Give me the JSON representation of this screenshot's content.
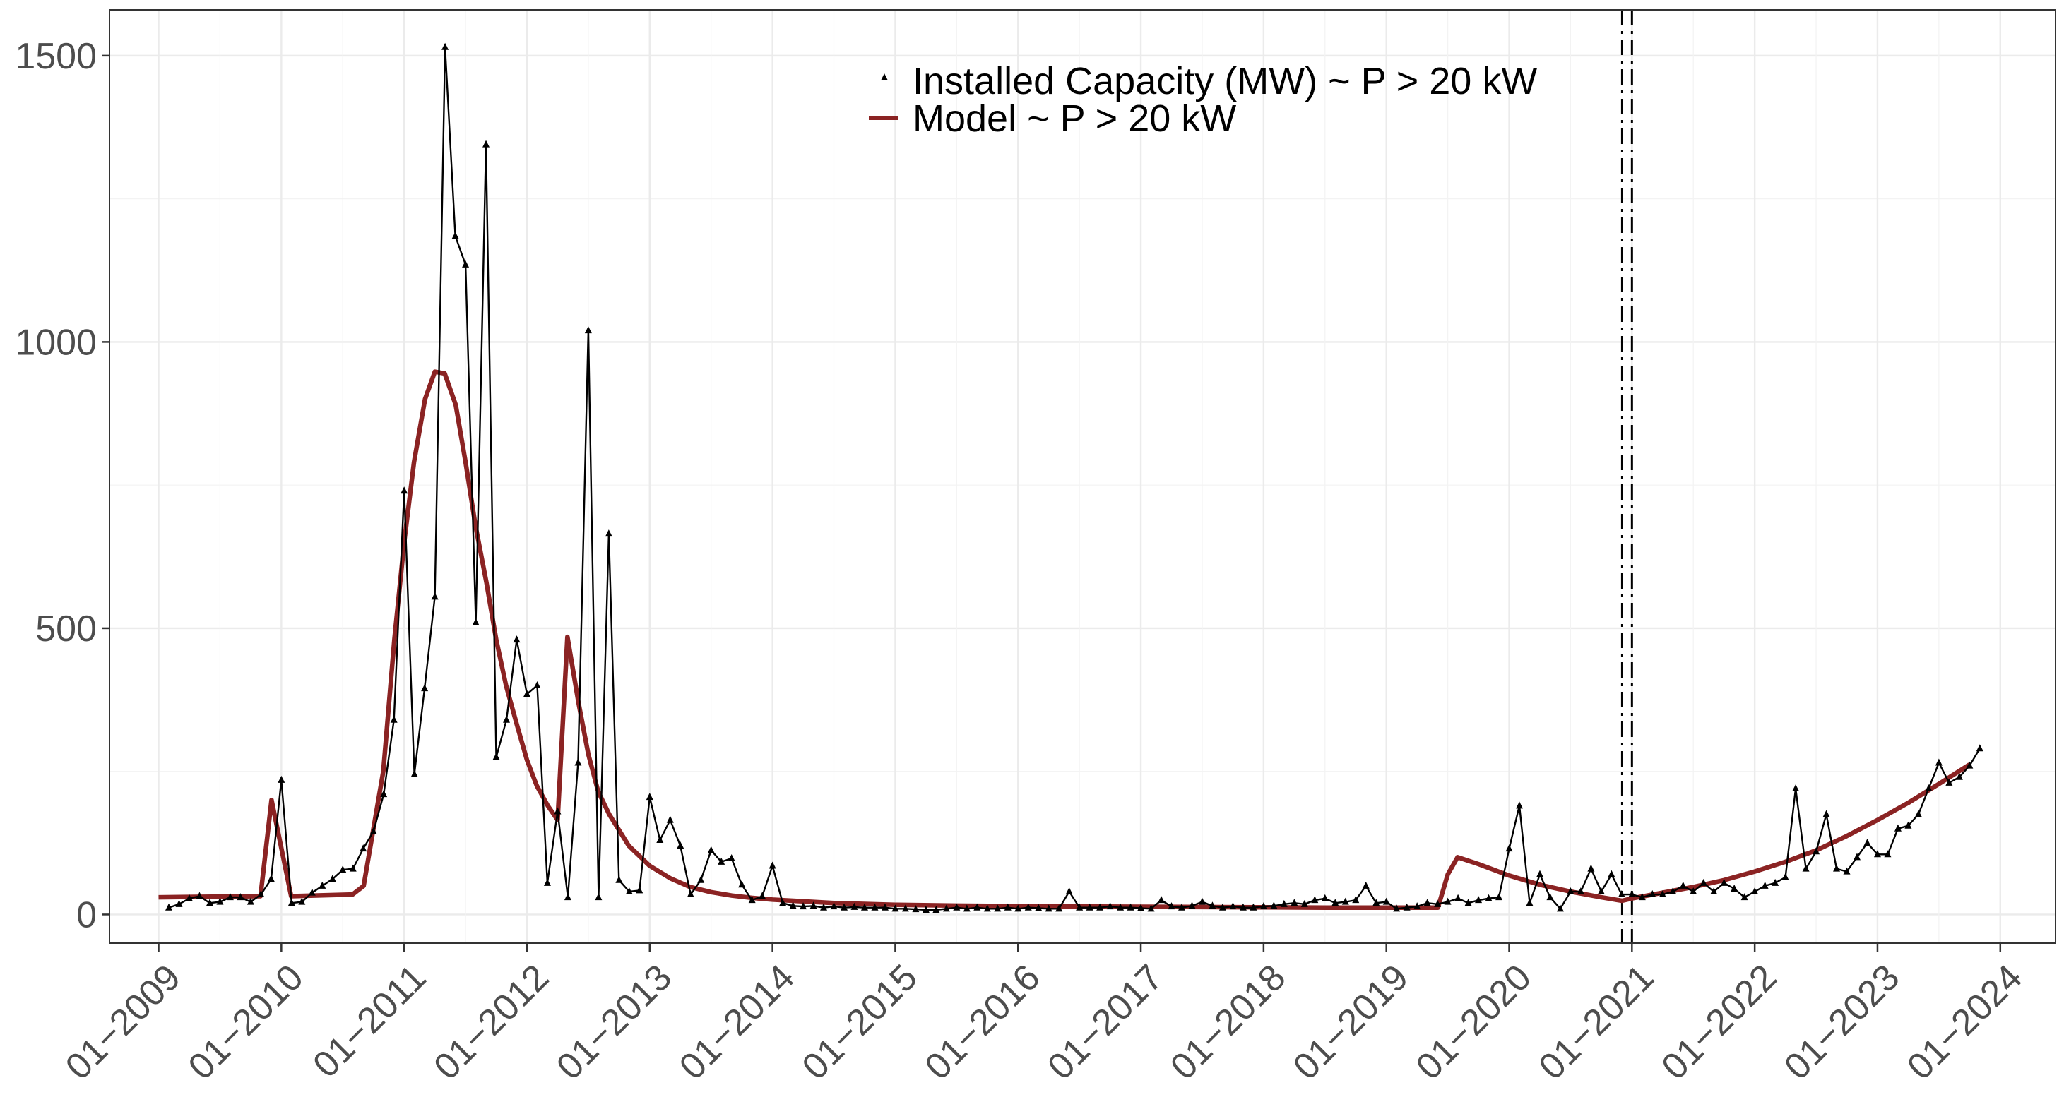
{
  "chart_data": {
    "type": "line",
    "title": "",
    "xlabel": "",
    "ylabel": "",
    "ylim": [
      -50,
      1580
    ],
    "xlim": [
      2008.6,
      2024.45
    ],
    "y_ticks": [
      0,
      500,
      1000,
      1500
    ],
    "x_ticks": [
      {
        "value": 2009,
        "label": "01−2009"
      },
      {
        "value": 2010,
        "label": "01−2010"
      },
      {
        "value": 2011,
        "label": "01−2011"
      },
      {
        "value": 2012,
        "label": "01−2012"
      },
      {
        "value": 2013,
        "label": "01−2013"
      },
      {
        "value": 2014,
        "label": "01−2014"
      },
      {
        "value": 2015,
        "label": "01−2015"
      },
      {
        "value": 2016,
        "label": "01−2016"
      },
      {
        "value": 2017,
        "label": "01−2017"
      },
      {
        "value": 2018,
        "label": "01−2018"
      },
      {
        "value": 2019,
        "label": "01−2019"
      },
      {
        "value": 2020,
        "label": "01−2020"
      },
      {
        "value": 2021,
        "label": "01−2021"
      },
      {
        "value": 2022,
        "label": "01−2022"
      },
      {
        "value": 2023,
        "label": "01−2023"
      },
      {
        "value": 2024,
        "label": "01−2024"
      }
    ],
    "vlines": [
      2020.92,
      2021.0
    ],
    "legend_position": "top-center",
    "colors": {
      "observed": "#000000",
      "model": "#8b2323",
      "grid": "#ebebeb",
      "axis": "#333333"
    },
    "series": [
      {
        "name": "Installed Capacity (MW) ~ P > 20 kW",
        "style": "line-triangle-markers",
        "values": [
          12,
          18,
          28,
          32,
          20,
          22,
          30,
          30,
          22,
          35,
          62,
          235,
          20,
          22,
          38,
          50,
          62,
          78,
          80,
          115,
          145,
          210,
          340,
          740,
          245,
          395,
          555,
          1515,
          1185,
          1135,
          510,
          1345,
          275,
          340,
          480,
          385,
          400,
          55,
          180,
          30,
          265,
          1020,
          30,
          665,
          60,
          40,
          42,
          205,
          130,
          165,
          120,
          35,
          60,
          112,
          92,
          98,
          52,
          25,
          32,
          85,
          20,
          15,
          14,
          15,
          12,
          14,
          12,
          13,
          12,
          12,
          12,
          10,
          10,
          9,
          8,
          8,
          10,
          12,
          10,
          12,
          10,
          10,
          12,
          10,
          12,
          11,
          10,
          10,
          40,
          12,
          12,
          12,
          14,
          12,
          12,
          11,
          10,
          25,
          14,
          12,
          15,
          22,
          15,
          12,
          14,
          12,
          12,
          14,
          15,
          18,
          20,
          18,
          25,
          28,
          20,
          22,
          25,
          50,
          20,
          22,
          10,
          12,
          14,
          20,
          18,
          22,
          28,
          20,
          25,
          28,
          30,
          115,
          190,
          20,
          70,
          30,
          10,
          40,
          40,
          80,
          40,
          70,
          35,
          35,
          30,
          35,
          35,
          40,
          50,
          40,
          55,
          40,
          55,
          45,
          30,
          40,
          50,
          55,
          65,
          220,
          80,
          110,
          175,
          80,
          75,
          100,
          125,
          105,
          105,
          150,
          155,
          175,
          220,
          265,
          230,
          240,
          260,
          290
        ]
      },
      {
        "name": "Model ~ P > 20 kW",
        "style": "line",
        "points": [
          [
            2009.0,
            30
          ],
          [
            2009.83,
            32
          ],
          [
            2009.92,
            200
          ],
          [
            2010.08,
            32
          ],
          [
            2010.58,
            35
          ],
          [
            2010.67,
            50
          ],
          [
            2010.83,
            250
          ],
          [
            2010.92,
            480
          ],
          [
            2011.0,
            650
          ],
          [
            2011.08,
            790
          ],
          [
            2011.17,
            900
          ],
          [
            2011.25,
            948
          ],
          [
            2011.33,
            945
          ],
          [
            2011.42,
            890
          ],
          [
            2011.5,
            790
          ],
          [
            2011.58,
            680
          ],
          [
            2011.67,
            580
          ],
          [
            2011.75,
            480
          ],
          [
            2011.83,
            400
          ],
          [
            2011.92,
            330
          ],
          [
            2012.0,
            270
          ],
          [
            2012.08,
            225
          ],
          [
            2012.17,
            190
          ],
          [
            2012.25,
            165
          ],
          [
            2012.33,
            485
          ],
          [
            2012.42,
            370
          ],
          [
            2012.5,
            280
          ],
          [
            2012.58,
            215
          ],
          [
            2012.67,
            175
          ],
          [
            2012.83,
            120
          ],
          [
            2013.0,
            85
          ],
          [
            2013.17,
            63
          ],
          [
            2013.33,
            48
          ],
          [
            2013.5,
            39
          ],
          [
            2013.67,
            33
          ],
          [
            2013.83,
            29
          ],
          [
            2014.0,
            26
          ],
          [
            2014.5,
            20
          ],
          [
            2015.0,
            17
          ],
          [
            2015.5,
            15.5
          ],
          [
            2016.0,
            14.5
          ],
          [
            2016.5,
            14
          ],
          [
            2017.0,
            13.5
          ],
          [
            2017.5,
            13
          ],
          [
            2018.0,
            12.5
          ],
          [
            2018.5,
            12
          ],
          [
            2019.0,
            12
          ],
          [
            2019.42,
            12
          ],
          [
            2019.5,
            70
          ],
          [
            2019.58,
            100
          ],
          [
            2019.75,
            88
          ],
          [
            2020.0,
            68
          ],
          [
            2020.25,
            52
          ],
          [
            2020.5,
            40
          ],
          [
            2020.75,
            30
          ],
          [
            2020.92,
            24
          ],
          [
            2021.0,
            28
          ],
          [
            2021.25,
            38
          ],
          [
            2021.5,
            48
          ],
          [
            2021.75,
            60
          ],
          [
            2022.0,
            75
          ],
          [
            2022.25,
            92
          ],
          [
            2022.5,
            112
          ],
          [
            2022.75,
            137
          ],
          [
            2023.0,
            165
          ],
          [
            2023.25,
            195
          ],
          [
            2023.5,
            228
          ],
          [
            2023.75,
            262
          ]
        ]
      }
    ]
  }
}
